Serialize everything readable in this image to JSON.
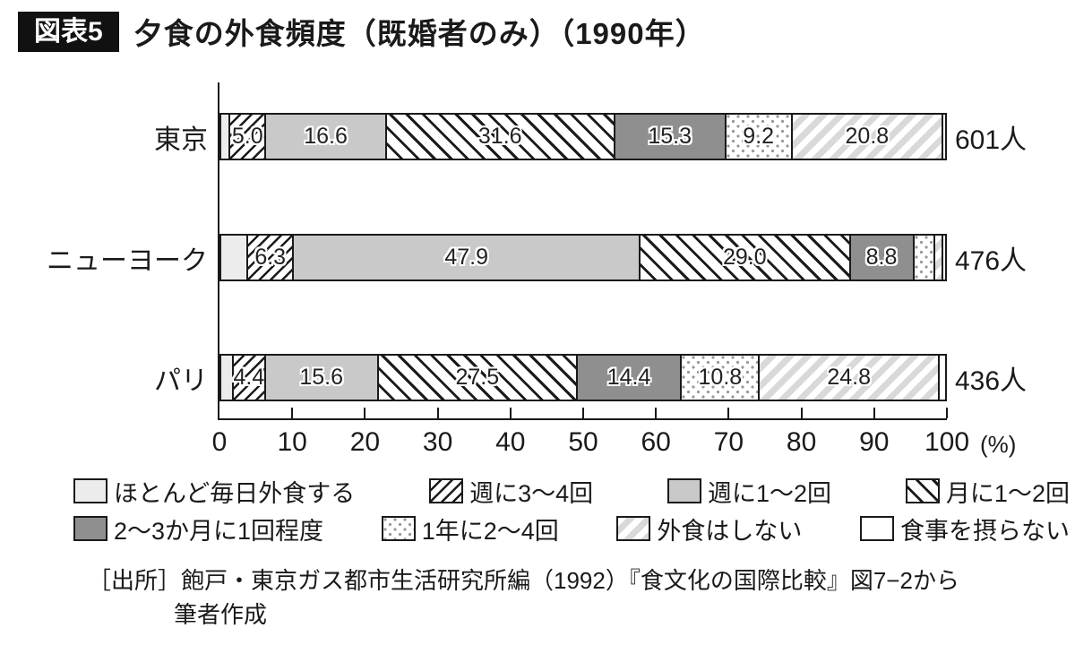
{
  "header": {
    "tag": "図表5",
    "title": "夕食の外食頻度（既婚者のみ）（1990年）"
  },
  "colors": {
    "line": "#1a1a1a",
    "light_gray": "#ececec",
    "mid_gray": "#c9c9c9",
    "dark_gray": "#8f8f8f",
    "stripe_gray": "#d9d9d9",
    "dot_gray": "#999999",
    "tag_bg": "#111111",
    "tag_text": "#ffffff"
  },
  "chart_data": {
    "type": "bar",
    "orientation": "horizontal",
    "stacked": true,
    "unit": "%",
    "x_axis": {
      "range": [
        0,
        100
      ],
      "ticks": [
        0,
        10,
        20,
        30,
        40,
        50,
        60,
        70,
        80,
        90,
        100
      ],
      "unit_label": "(%)"
    },
    "categories": [
      "東京",
      "ニューヨーク",
      "パリ"
    ],
    "counts": [
      "601人",
      "476人",
      "436人"
    ],
    "series": [
      {
        "name": "ほとんど毎日外食する",
        "pattern": "solid-light",
        "values": [
          1.0,
          3.5,
          1.5
        ],
        "labels": [
          "",
          "",
          ""
        ]
      },
      {
        "name": "週に3～4回",
        "pattern": "hatch-fwd-black",
        "values": [
          5.0,
          6.3,
          4.4
        ],
        "labels": [
          "5.0",
          "6.3",
          "4.4"
        ]
      },
      {
        "name": "週に1～2回",
        "pattern": "solid-mid",
        "values": [
          16.6,
          47.9,
          15.6
        ],
        "labels": [
          "16.6",
          "47.9",
          "15.6"
        ]
      },
      {
        "name": "月に1～2回",
        "pattern": "hatch-back-black",
        "values": [
          31.6,
          29.0,
          27.5
        ],
        "labels": [
          "31.6",
          "29.0",
          "27.5"
        ]
      },
      {
        "name": "2～3か月に1回程度",
        "pattern": "solid-dark",
        "values": [
          15.3,
          8.8,
          14.4
        ],
        "labels": [
          "15.3",
          "8.8",
          "14.4"
        ]
      },
      {
        "name": "1年に2～4回",
        "pattern": "dots",
        "values": [
          9.2,
          2.9,
          10.8
        ],
        "labels": [
          "9.2",
          "",
          "10.8"
        ]
      },
      {
        "name": "外食はしない",
        "pattern": "stripe-light",
        "values": [
          20.8,
          1.1,
          24.8
        ],
        "labels": [
          "20.8",
          "",
          "24.8"
        ]
      },
      {
        "name": "食事を摂らない",
        "pattern": "solid-white",
        "values": [
          0.5,
          0.5,
          1.0
        ],
        "labels": [
          "",
          "",
          ""
        ]
      }
    ],
    "legend_rows": [
      [
        0,
        1,
        2,
        3
      ],
      [
        4,
        5,
        6,
        7
      ]
    ]
  },
  "source": {
    "line1": "［出所］飽戸・東京ガス都市生活研究所編（1992）『食文化の国際比較』図7−2から",
    "line2": "筆者作成"
  }
}
